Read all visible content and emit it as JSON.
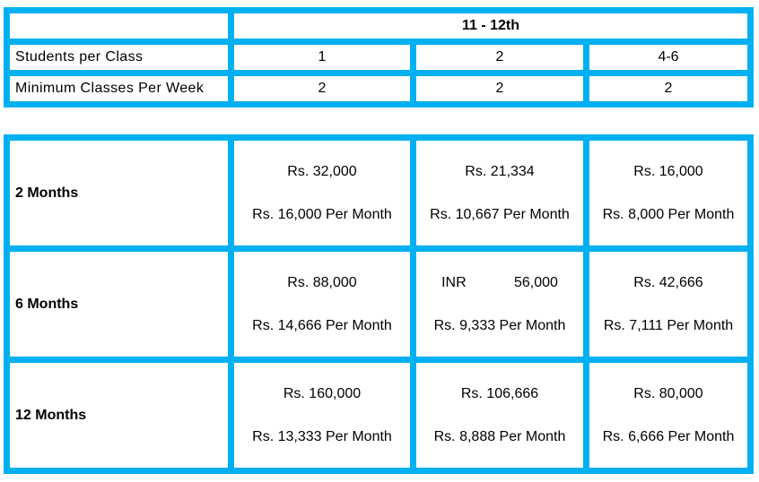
{
  "colors": {
    "accent": "#00B0F0",
    "text": "#000000",
    "cell_background": "#FFFFFF"
  },
  "schedule_table": {
    "corner_label": "",
    "header": "11 - 12th",
    "rows": [
      {
        "label": "Students per Class",
        "values": [
          "1",
          "2",
          "4-6"
        ]
      },
      {
        "label": "Minimum Classes Per Week",
        "values": [
          "2",
          "2",
          "2"
        ]
      }
    ]
  },
  "pricing_table": {
    "rows": [
      {
        "label": "2 Months",
        "cells": [
          {
            "total": "Rs. 32,000",
            "per_month": "Rs. 16,000 Per Month"
          },
          {
            "total": "Rs. 21,334",
            "per_month": "Rs. 10,667 Per Month"
          },
          {
            "total": "Rs. 16,000",
            "per_month": "Rs. 8,000 Per Month"
          }
        ]
      },
      {
        "label": "6 Months",
        "cells": [
          {
            "total": "Rs. 88,000",
            "per_month": "Rs. 14,666 Per Month"
          },
          {
            "total": "INR            56,000",
            "per_month": "Rs. 9,333 Per Month"
          },
          {
            "total": "Rs. 42,666",
            "per_month": "Rs. 7,111 Per Month"
          }
        ]
      },
      {
        "label": "12 Months",
        "cells": [
          {
            "total": "Rs. 160,000",
            "per_month": "Rs. 13,333 Per Month"
          },
          {
            "total": "Rs. 106,666",
            "per_month": "Rs. 8,888 Per Month"
          },
          {
            "total": "Rs. 80,000",
            "per_month": "Rs. 6,666 Per Month"
          }
        ]
      }
    ]
  }
}
